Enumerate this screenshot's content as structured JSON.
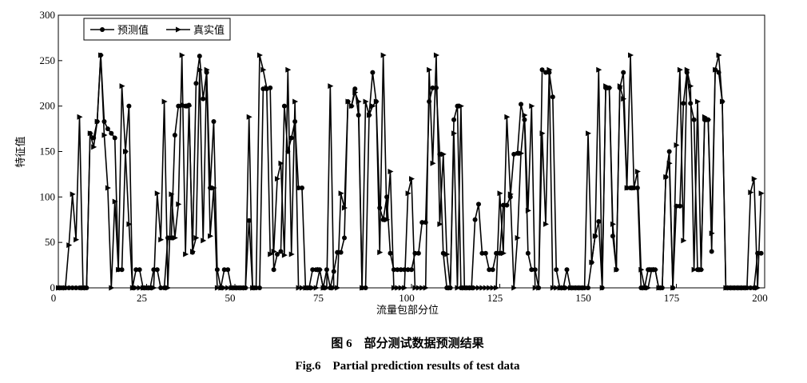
{
  "chart_data": {
    "type": "line",
    "caption_cn": "图 6　部分测试数据预测结果",
    "caption_en": "Fig.6　Partial  prediction results of test data",
    "xlabel": "流量包部分位",
    "ylabel": "特征值",
    "xlim": [
      0,
      200
    ],
    "ylim": [
      0,
      300
    ],
    "xticks": [
      0,
      25,
      50,
      75,
      100,
      125,
      150,
      175,
      200
    ],
    "yticks": [
      0,
      50,
      100,
      150,
      200,
      250,
      300
    ],
    "legend": "upper left",
    "series": [
      {
        "name": "预测值",
        "color": "#000000",
        "marker": "circle",
        "values": [
          0,
          0,
          0,
          0,
          0,
          0,
          0,
          0,
          0,
          170,
          165,
          183,
          256,
          183,
          175,
          170,
          165,
          20,
          20,
          150,
          200,
          0,
          20,
          20,
          0,
          0,
          0,
          20,
          20,
          0,
          0,
          55,
          55,
          168,
          200,
          201,
          200,
          201,
          39,
          225,
          255,
          208,
          237,
          110,
          183,
          20,
          0,
          20,
          20,
          0,
          0,
          0,
          0,
          0,
          74,
          0,
          0,
          0,
          219,
          219,
          220,
          20,
          37,
          40,
          200,
          150,
          165,
          183,
          110,
          110,
          0,
          0,
          20,
          20,
          20,
          0,
          20,
          0,
          18,
          39,
          39,
          55,
          205,
          200,
          219,
          190,
          0,
          0,
          190,
          237,
          205,
          88,
          75,
          100,
          38,
          20,
          20,
          20,
          20,
          20,
          20,
          38,
          38,
          72,
          72,
          205,
          220,
          220,
          147,
          38,
          0,
          0,
          185,
          200,
          0,
          0,
          0,
          0,
          75,
          92,
          38,
          38,
          20,
          20,
          38,
          38,
          91,
          91,
          100,
          147,
          148,
          202,
          185,
          38,
          20,
          20,
          0,
          240,
          237,
          237,
          210,
          20,
          0,
          0,
          20,
          0,
          0,
          0,
          0,
          0,
          0,
          28,
          57,
          73,
          0,
          220,
          220,
          57,
          20,
          220,
          237,
          110,
          110,
          110,
          110,
          0,
          0,
          20,
          20,
          20,
          0,
          0,
          122,
          150,
          0,
          90,
          90,
          203,
          237,
          203,
          185,
          20,
          20,
          185,
          185,
          40,
          240,
          237,
          205,
          0,
          0,
          0,
          0,
          0,
          0,
          0,
          0,
          0,
          38,
          38
        ]
      },
      {
        "name": "真实值",
        "color": "#000000",
        "marker": "triangle",
        "values": [
          0,
          0,
          0,
          47,
          103,
          53,
          188,
          0,
          0,
          170,
          155,
          183,
          256,
          168,
          110,
          0,
          95,
          20,
          222,
          150,
          70,
          0,
          0,
          0,
          0,
          0,
          0,
          0,
          104,
          53,
          205,
          0,
          103,
          55,
          92,
          256,
          37,
          200,
          40,
          55,
          240,
          52,
          240,
          57,
          110,
          0,
          0,
          0,
          0,
          0,
          0,
          0,
          0,
          0,
          188,
          0,
          0,
          256,
          240,
          220,
          37,
          40,
          120,
          137,
          36,
          240,
          37,
          205,
          0,
          0,
          0,
          0,
          0,
          0,
          20,
          0,
          0,
          222,
          0,
          0,
          104,
          88,
          205,
          200,
          215,
          205,
          0,
          205,
          190,
          200,
          205,
          39,
          256,
          75,
          128,
          0,
          0,
          0,
          0,
          104,
          120,
          0,
          0,
          0,
          0,
          240,
          137,
          256,
          70,
          147,
          37,
          0,
          170,
          0,
          200,
          0,
          0,
          0,
          0,
          0,
          0,
          0,
          0,
          0,
          0,
          104,
          38,
          188,
          103,
          0,
          55,
          148,
          190,
          85,
          200,
          0,
          0,
          170,
          70,
          240,
          0,
          0,
          0,
          0,
          0,
          0,
          0,
          0,
          0,
          0,
          170,
          28,
          57,
          240,
          0,
          222,
          220,
          70,
          20,
          222,
          208,
          110,
          256,
          110,
          128,
          20,
          0,
          0,
          20,
          20,
          0,
          0,
          122,
          137,
          0,
          157,
          240,
          52,
          240,
          222,
          20,
          205,
          20,
          188,
          185,
          60,
          240,
          256,
          205,
          0,
          0,
          0,
          0,
          0,
          0,
          0,
          105,
          120,
          0,
          104
        ]
      }
    ]
  }
}
